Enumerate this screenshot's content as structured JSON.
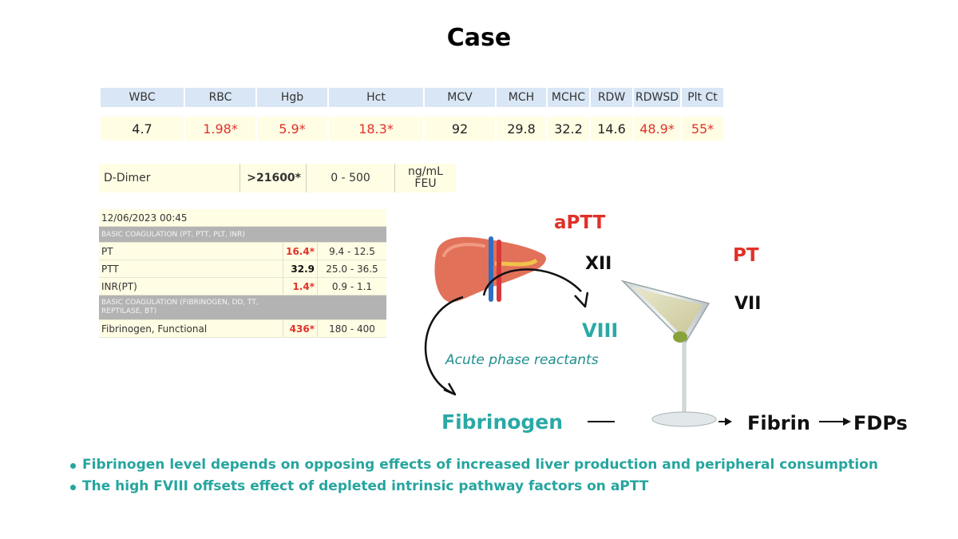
{
  "title": "Case",
  "cbc": {
    "headers": [
      "WBC",
      "RBC",
      "Hgb",
      "Hct",
      "MCV",
      "MCH",
      "MCHC",
      "RDW",
      "RDWSD",
      "Plt Ct"
    ],
    "values": [
      "4.7",
      "1.98*",
      "5.9*",
      "18.3*",
      "92",
      "29.8",
      "32.2",
      "14.6",
      "48.9*",
      "55*"
    ],
    "abnormal_color": "#e0312a"
  },
  "ddimer": {
    "name": "D-Dimer",
    "value": ">21600*",
    "range": "0 - 500",
    "unit_line1": "ng/mL",
    "unit_line2": "FEU"
  },
  "coag": {
    "datetime": "12/06/2023 00:45",
    "section1": "BASIC COAGULATION (PT, PTT, PLT, INR)",
    "rows1": [
      {
        "name": "PT",
        "value": "16.4*",
        "range": "9.4 - 12.5"
      },
      {
        "name": "PTT",
        "value": "32.9",
        "range": "25.0 - 36.5"
      },
      {
        "name": "INR(PT)",
        "value": "1.4*",
        "range": "0.9 - 1.1"
      }
    ],
    "section2_line1": "BASIC COAGULATION (FIBRINOGEN, DD, TT,",
    "section2_line2": "REPTILASE, BT)",
    "rows2": [
      {
        "name": "Fibrinogen, Functional",
        "value": "436*",
        "range": "180 - 400"
      }
    ]
  },
  "diagram": {
    "aptt": "aPTT",
    "xii": "XII",
    "pt": "PT",
    "vii": "VII",
    "viii": "VIII",
    "acute_phase": "Acute phase reactants",
    "fibrinogen": "Fibrinogen",
    "fibrin": "Fibrin",
    "fdps": "FDPs",
    "colors": {
      "red": "#e0312a",
      "teal": "#2aa9a6",
      "liver": "#e2715a"
    }
  },
  "bullets": [
    "Fibrinogen level depends on opposing effects of increased liver production and peripheral consumption",
    "The high FVIII offsets effect of depleted intrinsic pathway factors on aPTT"
  ]
}
